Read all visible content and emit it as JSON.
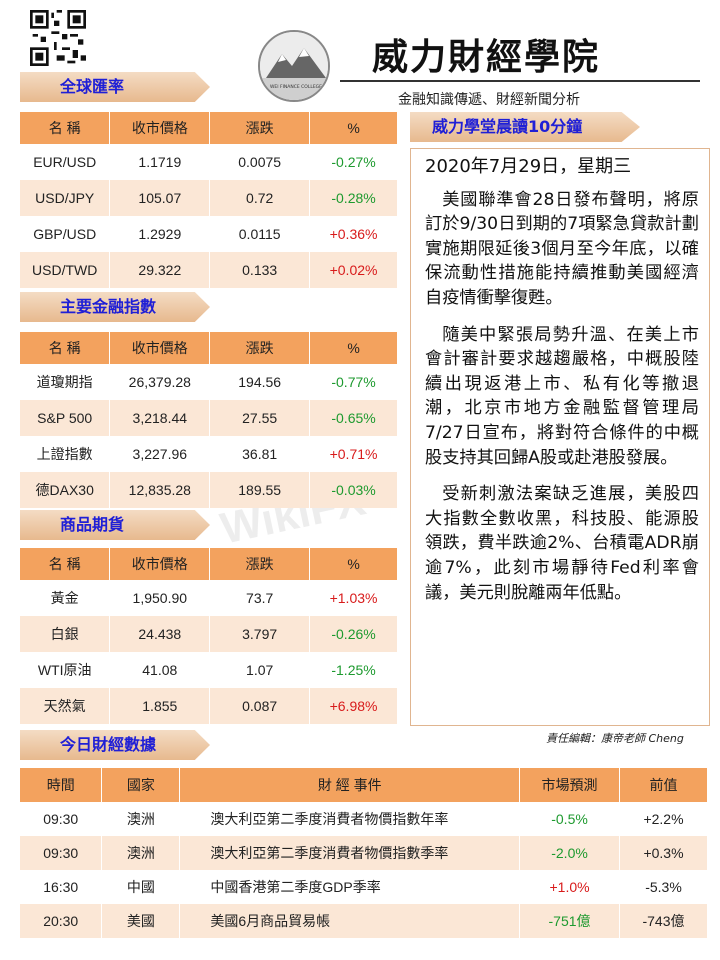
{
  "brand": {
    "title": "威力財經學院",
    "subtitle": "金融知識傳遞、財經新聞分析",
    "logo_caption": "WEI FINANCE COLLEGE"
  },
  "watermark": "WikiFX",
  "fx": {
    "banner": "全球匯率",
    "headers": [
      "名 稱",
      "收市價格",
      "漲跌",
      "%"
    ],
    "rows": [
      {
        "name": "EUR/USD",
        "price": "1.1719",
        "change": "0.0075",
        "pct": "-0.27%"
      },
      {
        "name": "USD/JPY",
        "price": "105.07",
        "change": "0.72",
        "pct": "-0.28%"
      },
      {
        "name": "GBP/USD",
        "price": "1.2929",
        "change": "0.0115",
        "pct": "+0.36%"
      },
      {
        "name": "USD/TWD",
        "price": "29.322",
        "change": "0.133",
        "pct": "+0.02%"
      }
    ]
  },
  "indices": {
    "banner": "主要金融指數",
    "headers": [
      "名 稱",
      "收市價格",
      "漲跌",
      "%"
    ],
    "rows": [
      {
        "name": "道瓊期指",
        "price": "26,379.28",
        "change": "194.56",
        "pct": "-0.77%"
      },
      {
        "name": "S&P 500",
        "price": "3,218.44",
        "change": "27.55",
        "pct": "-0.65%"
      },
      {
        "name": "上證指數",
        "price": "3,227.96",
        "change": "36.81",
        "pct": "+0.71%"
      },
      {
        "name": "德DAX30",
        "price": "12,835.28",
        "change": "189.55",
        "pct": "-0.03%"
      }
    ]
  },
  "commodities": {
    "banner": "商品期貨",
    "headers": [
      "名 稱",
      "收市價格",
      "漲跌",
      "%"
    ],
    "rows": [
      {
        "name": "黃金",
        "price": "1,950.90",
        "change": "73.7",
        "pct": "+1.03%"
      },
      {
        "name": "白銀",
        "price": "24.438",
        "change": "3.797",
        "pct": "-0.26%"
      },
      {
        "name": "WTI原油",
        "price": "41.08",
        "change": "1.07",
        "pct": "-1.25%"
      },
      {
        "name": "天然氣",
        "price": "1.855",
        "change": "0.087",
        "pct": "+6.98%"
      }
    ]
  },
  "article": {
    "banner": "威力學堂晨讀10分鐘",
    "date": "2020年7月29日，星期三",
    "paragraphs": [
      "美國聯準會28日發布聲明，將原訂於9/30日到期的7項緊急貸款計劃實施期限延後3個月至今年底，以確保流動性措施能持續推動美國經濟自疫情衝擊復甦。",
      "隨美中緊張局勢升溫、在美上市會計審計要求越趨嚴格，中概股陸續出現返港上市、私有化等撤退潮，北京市地方金融監督管理局7/27日宣布，將對符合條件的中概股支持其回歸A股或赴港股發展。",
      "受新刺激法案缺乏進展，美股四大指數全數收黑，科技股、能源股領跌，費半跌逾2%、台積電ADR崩逾7%，此刻市場靜待Fed利率會議，美元則脫離兩年低點。"
    ],
    "editor": "責任編輯：康帝老師 Cheng"
  },
  "econ": {
    "banner": "今日財經數據",
    "headers": [
      "時間",
      "國家",
      "財 經 事件",
      "市場預測",
      "前值"
    ],
    "rows": [
      {
        "time": "09:30",
        "country": "澳洲",
        "event": "澳大利亞第二季度消費者物價指數年率",
        "forecast": "-0.5%",
        "prev": "+2.2%"
      },
      {
        "time": "09:30",
        "country": "澳洲",
        "event": "澳大利亞第二季度消費者物價指數季率",
        "forecast": "-2.0%",
        "prev": "+0.3%"
      },
      {
        "time": "16:30",
        "country": "中國",
        "event": "中國香港第二季度GDP季率",
        "forecast": "+1.0%",
        "prev": "-5.3%"
      },
      {
        "time": "20:30",
        "country": "美國",
        "event": "美國6月商品貿易帳",
        "forecast": "-751億",
        "prev": "-743億"
      }
    ]
  }
}
